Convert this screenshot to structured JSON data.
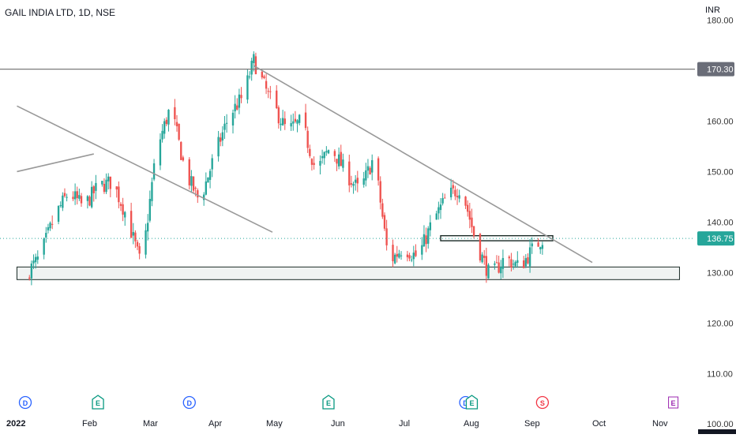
{
  "header": {
    "title": "GAIL INDIA LTD, 1D, NSE",
    "currency": "INR"
  },
  "colors": {
    "up": "#26a69a",
    "down": "#ef5350",
    "trendline": "#999999",
    "price_line": "#7a7a7a",
    "axis_text": "#333333",
    "zone_fill": "#f0f3f2",
    "current_price": "#26a69a",
    "events": {
      "D": "#2962ff",
      "E": "#089981",
      "S": "#f23645",
      "E_future": "#9c27b0"
    }
  },
  "chart_data": {
    "type": "candlestick",
    "title": "GAIL INDIA LTD, 1D, NSE",
    "ylim": [
      98,
      184
    ],
    "y_ticks": [
      {
        "value": 180,
        "label": "180.00"
      },
      {
        "value": 160,
        "label": "160.00"
      },
      {
        "value": 150,
        "label": "150.00"
      },
      {
        "value": 140,
        "label": "140.00"
      },
      {
        "value": 130,
        "label": "130.00"
      },
      {
        "value": 120,
        "label": "120.00"
      },
      {
        "value": 110,
        "label": "110.00"
      },
      {
        "value": 100,
        "label": "100.00"
      }
    ],
    "x_ticks": [
      {
        "label": "2022",
        "bold": true
      },
      {
        "label": "Feb"
      },
      {
        "label": "Mar"
      },
      {
        "label": "Apr"
      },
      {
        "label": "May"
      },
      {
        "label": "Jun"
      },
      {
        "label": "Jul"
      },
      {
        "label": "Aug"
      },
      {
        "label": "Sep"
      },
      {
        "label": "Oct"
      },
      {
        "label": "Nov"
      }
    ],
    "price_tags": [
      {
        "value": 170.3,
        "label": "170.30",
        "kind": "horizontal-line"
      },
      {
        "value": 136.75,
        "label": "136.75",
        "kind": "current-price"
      }
    ],
    "close_series": [
      {
        "date": "2022-01-01",
        "close": 129.5
      },
      {
        "date": "2022-01-08",
        "close": 133
      },
      {
        "date": "2022-01-15",
        "close": 141
      },
      {
        "date": "2022-01-22",
        "close": 146
      },
      {
        "date": "2022-01-29",
        "close": 143
      },
      {
        "date": "2022-02-05",
        "close": 147
      },
      {
        "date": "2022-02-12",
        "close": 148
      },
      {
        "date": "2022-02-19",
        "close": 141
      },
      {
        "date": "2022-02-26",
        "close": 131
      },
      {
        "date": "2022-03-05",
        "close": 154
      },
      {
        "date": "2022-03-12",
        "close": 163
      },
      {
        "date": "2022-03-19",
        "close": 150
      },
      {
        "date": "2022-03-26",
        "close": 144
      },
      {
        "date": "2022-04-02",
        "close": 153
      },
      {
        "date": "2022-04-09",
        "close": 161
      },
      {
        "date": "2022-04-16",
        "close": 165
      },
      {
        "date": "2022-04-21",
        "close": 172
      },
      {
        "date": "2022-04-28",
        "close": 165
      },
      {
        "date": "2022-05-07",
        "close": 158
      },
      {
        "date": "2022-05-14",
        "close": 160
      },
      {
        "date": "2022-05-21",
        "close": 150
      },
      {
        "date": "2022-05-28",
        "close": 155
      },
      {
        "date": "2022-06-04",
        "close": 150
      },
      {
        "date": "2022-06-11",
        "close": 146
      },
      {
        "date": "2022-06-18",
        "close": 153
      },
      {
        "date": "2022-06-25",
        "close": 132
      },
      {
        "date": "2022-07-02",
        "close": 135
      },
      {
        "date": "2022-07-09",
        "close": 133
      },
      {
        "date": "2022-07-16",
        "close": 140
      },
      {
        "date": "2022-07-23",
        "close": 145
      },
      {
        "date": "2022-07-30",
        "close": 147
      },
      {
        "date": "2022-08-06",
        "close": 136
      },
      {
        "date": "2022-08-13",
        "close": 129
      },
      {
        "date": "2022-08-20",
        "close": 133
      },
      {
        "date": "2022-08-27",
        "close": 131
      },
      {
        "date": "2022-09-03",
        "close": 135
      },
      {
        "date": "2022-09-07",
        "close": 136.75
      }
    ],
    "horizontal_lines": [
      {
        "value": 170.3
      }
    ],
    "trendlines": [
      {
        "from": {
          "date": "2021-12-28",
          "price": 163
        },
        "to": {
          "date": "2022-04-30",
          "price": 138
        }
      },
      {
        "from": {
          "date": "2021-12-28",
          "price": 150
        },
        "to": {
          "date": "2022-02-03",
          "price": 153.5
        }
      },
      {
        "from": {
          "date": "2022-04-21",
          "price": 171
        },
        "to": {
          "date": "2022-10-01",
          "price": 132
        }
      }
    ],
    "zones": [
      {
        "from": "2021-12-28",
        "to": "2022-11-12",
        "top": 131.1,
        "bottom": 128.6
      },
      {
        "from": "2022-07-20",
        "to": "2022-09-12",
        "top": 137.3,
        "bottom": 136.3
      }
    ],
    "events": [
      {
        "letter": "D",
        "date": "2022-01-01",
        "type": "dividend"
      },
      {
        "letter": "E",
        "date": "2022-02-05",
        "type": "earnings"
      },
      {
        "letter": "D",
        "date": "2022-03-21",
        "type": "dividend"
      },
      {
        "letter": "E",
        "date": "2022-05-27",
        "type": "earnings"
      },
      {
        "letter": "D",
        "date": "2022-08-01",
        "type": "dividend"
      },
      {
        "letter": "E",
        "date": "2022-08-04",
        "type": "earnings"
      },
      {
        "letter": "S",
        "date": "2022-09-07",
        "type": "split"
      },
      {
        "letter": "E",
        "date": "2022-11-09",
        "type": "earnings-upcoming"
      }
    ]
  }
}
